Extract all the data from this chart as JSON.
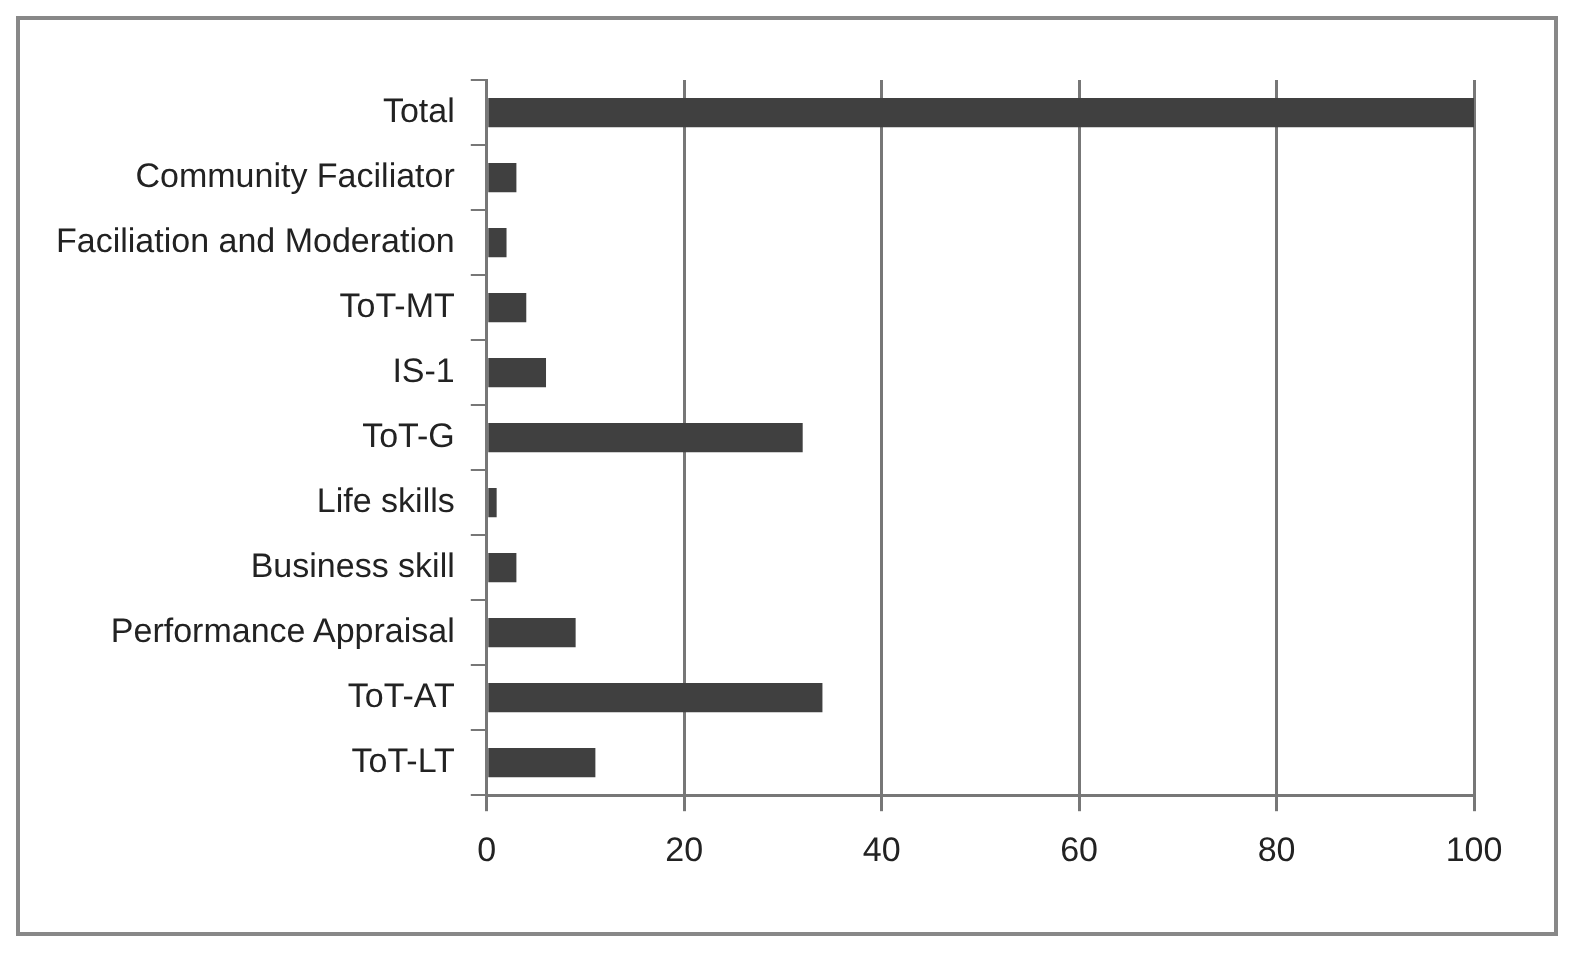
{
  "chart_data": {
    "type": "bar",
    "orientation": "horizontal",
    "categories": [
      "Total",
      "Community Faciliator",
      "Faciliation and Moderation",
      "ToT-MT",
      "IS-1",
      "ToT-G",
      "Life skills",
      "Business skill",
      "Performance Appraisal",
      "ToT-AT",
      "ToT-LT"
    ],
    "values": [
      100,
      3,
      2,
      4,
      6,
      32,
      1,
      3,
      9,
      34,
      11
    ],
    "color": "#404040",
    "xlim": [
      0,
      100
    ],
    "xticks": [
      0,
      20,
      40,
      60,
      80,
      100
    ],
    "grid": "x",
    "legend": false
  }
}
